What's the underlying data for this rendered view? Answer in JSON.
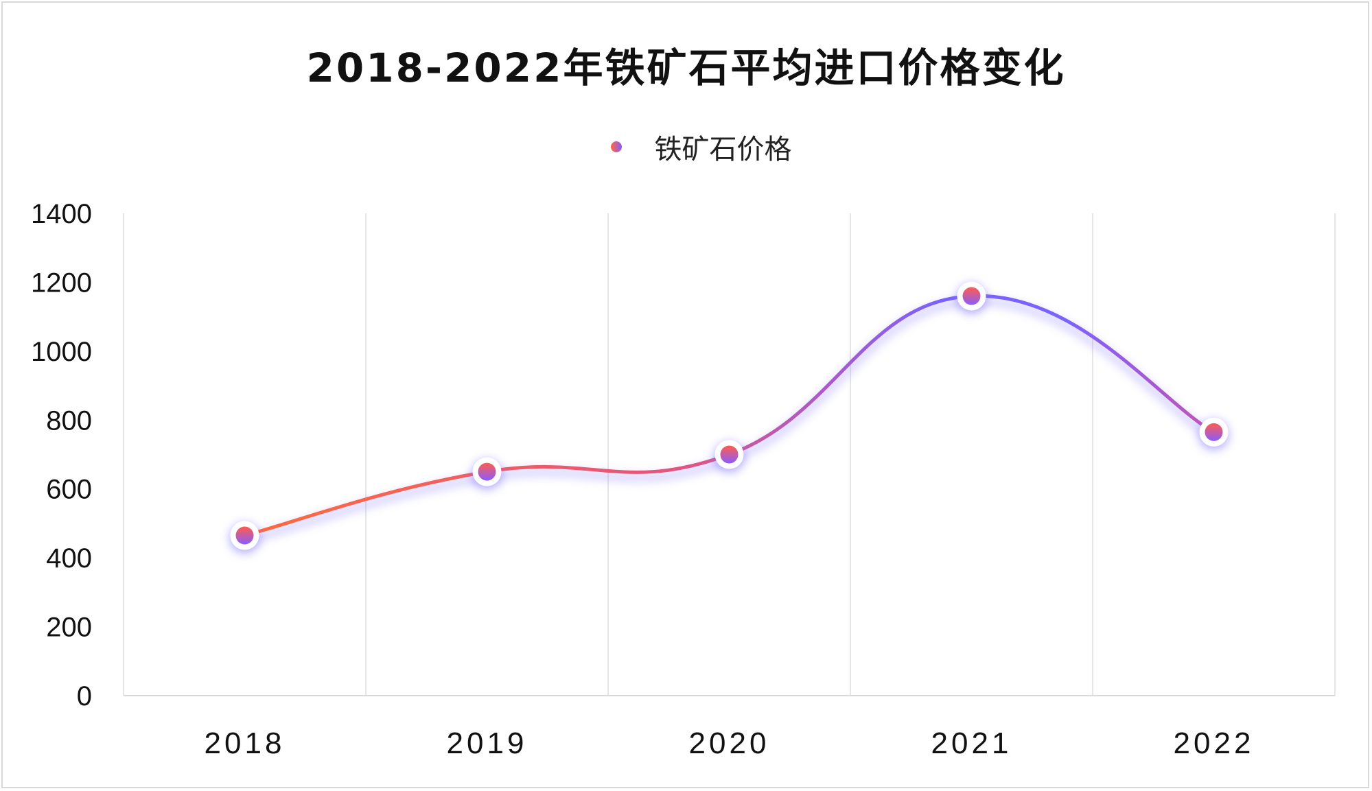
{
  "chart_data": {
    "type": "line",
    "title": "2018-2022年铁矿石平均进口价格变化",
    "categories": [
      "2018",
      "2019",
      "2020",
      "2021",
      "2022"
    ],
    "series": [
      {
        "name": "铁矿石价格",
        "values": [
          465,
          650,
          700,
          1160,
          765
        ]
      }
    ],
    "ylim": [
      0,
      1400
    ],
    "yticks": [
      0,
      200,
      400,
      600,
      800,
      1000,
      1200,
      1400
    ],
    "xlabel": "",
    "ylabel": "",
    "grid": "vertical",
    "legend": "top-center",
    "smooth": true,
    "colors": {
      "line_start": "#ff6a3d",
      "line_mid": "#e4547f",
      "line_end": "#7b61ff",
      "marker_fill_start": "#ff5c4d",
      "marker_fill_end": "#8a5cff",
      "marker_ring": "#ffffff",
      "glow": "#7a6cff",
      "grid": "#e6e6e6"
    }
  }
}
